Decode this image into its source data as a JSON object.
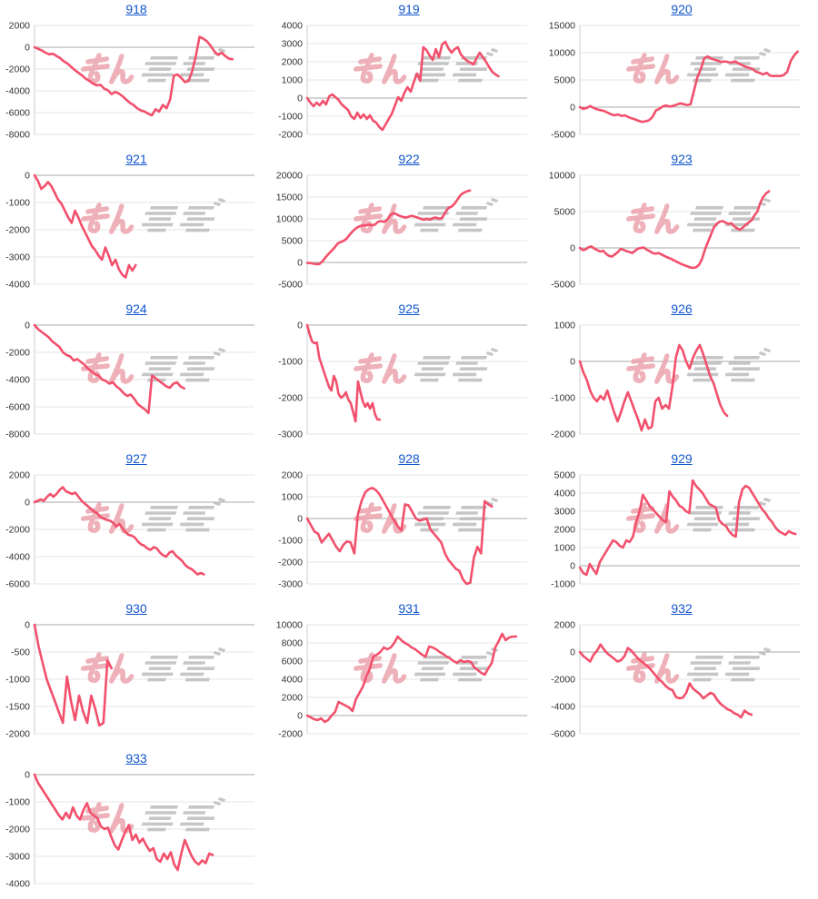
{
  "page": {
    "background": "#ffffff"
  },
  "colors": {
    "line": "#f2506c",
    "title_link": "#1155cc",
    "grid": "#e6e6e6",
    "zero_line": "#aaaaaa",
    "axis_line": "#cccccc",
    "tick_text": "#333333",
    "watermark_pink": "#eca4ad",
    "watermark_gray": "#bdbdbd"
  },
  "watermark": {
    "text": "みんレポ",
    "pink_part": "みん",
    "gray_part": "レポ"
  },
  "chart_data": [
    {
      "type": "line",
      "title": "918",
      "ymax": 2000,
      "ymin": -8000,
      "ticks": [
        2000,
        0,
        -2000,
        -4000,
        -6000,
        -8000
      ],
      "end_frac": 0.9,
      "values": [
        0,
        -150,
        -300,
        -500,
        -650,
        -600,
        -800,
        -1000,
        -1300,
        -1500,
        -1800,
        -2100,
        -2350,
        -2600,
        -2900,
        -3100,
        -3350,
        -3500,
        -3450,
        -3800,
        -3950,
        -4300,
        -4100,
        -4250,
        -4500,
        -4800,
        -5100,
        -5300,
        -5600,
        -5800,
        -5900,
        -6100,
        -6250,
        -5700,
        -5900,
        -5300,
        -5600,
        -4800,
        -2600,
        -2500,
        -2800,
        -3200,
        -3100,
        -2200,
        -800,
        950,
        800,
        550,
        150,
        -350,
        -700,
        -500,
        -800,
        -1050,
        -1100
      ]
    },
    {
      "type": "line",
      "title": "919",
      "ymax": 4000,
      "ymin": -2000,
      "ticks": [
        4000,
        3000,
        2000,
        1000,
        0,
        -1000,
        -2000
      ],
      "end_frac": 0.87,
      "values": [
        0,
        -250,
        -450,
        -250,
        -400,
        -150,
        -350,
        100,
        200,
        50,
        -100,
        -350,
        -500,
        -650,
        -1000,
        -1150,
        -800,
        -1100,
        -900,
        -1150,
        -950,
        -1250,
        -1350,
        -1600,
        -1750,
        -1450,
        -1150,
        -850,
        -400,
        50,
        -150,
        300,
        600,
        350,
        900,
        1350,
        950,
        2800,
        2650,
        2350,
        2100,
        2700,
        2250,
        2950,
        3100,
        2750,
        2500,
        2700,
        2800,
        2400,
        2200,
        2050,
        1950,
        1850,
        2200,
        2500,
        2250,
        2000,
        1700,
        1450,
        1300,
        1200
      ]
    },
    {
      "type": "line",
      "title": "920",
      "ymax": 15000,
      "ymin": -5000,
      "ticks": [
        15000,
        10000,
        5000,
        0,
        -5000
      ],
      "end_frac": 0.99,
      "values": [
        0,
        -300,
        -150,
        200,
        -150,
        -400,
        -550,
        -700,
        -1000,
        -1300,
        -1500,
        -1350,
        -1600,
        -1500,
        -1800,
        -2050,
        -2250,
        -2500,
        -2700,
        -2600,
        -2400,
        -1800,
        -600,
        -300,
        150,
        300,
        100,
        250,
        450,
        700,
        550,
        400,
        500,
        3000,
        5500,
        7000,
        9000,
        9300,
        8900,
        8700,
        8500,
        8300,
        8400,
        8250,
        8200,
        8400,
        8000,
        7700,
        7400,
        7200,
        7000,
        6500,
        6300,
        6000,
        6300,
        5800,
        5700,
        5750,
        5700,
        5900,
        6500,
        8500,
        9500,
        10200
      ]
    },
    {
      "type": "line",
      "title": "921",
      "ymax": 0,
      "ymin": -4000,
      "ticks": [
        0,
        -1000,
        -2000,
        -3000,
        -4000
      ],
      "end_frac": 0.46,
      "values": [
        0,
        -200,
        -500,
        -400,
        -250,
        -400,
        -650,
        -900,
        -1050,
        -1300,
        -1550,
        -1750,
        -1300,
        -1550,
        -1850,
        -2100,
        -2350,
        -2600,
        -2750,
        -2950,
        -3100,
        -2650,
        -2950,
        -3300,
        -3100,
        -3450,
        -3650,
        -3750,
        -3300,
        -3500,
        -3300
      ]
    },
    {
      "type": "line",
      "title": "922",
      "ymax": 20000,
      "ymin": -5000,
      "ticks": [
        20000,
        15000,
        10000,
        5000,
        0,
        -5000
      ],
      "end_frac": 0.74,
      "values": [
        -100,
        -150,
        -300,
        -400,
        -350,
        300,
        1200,
        2000,
        2700,
        3500,
        4400,
        4700,
        5000,
        5600,
        6500,
        7300,
        7900,
        8300,
        8500,
        8450,
        8700,
        8500,
        8650,
        9300,
        9500,
        9300,
        9800,
        10800,
        11300,
        11100,
        10700,
        10500,
        10300,
        10500,
        10700,
        10500,
        10300,
        10000,
        9800,
        10000,
        9800,
        10200,
        10300,
        10000,
        10300,
        11500,
        12500,
        12800,
        13500,
        14500,
        15500,
        16000,
        16300,
        16500
      ]
    },
    {
      "type": "line",
      "title": "923",
      "ymax": 10000,
      "ymin": -5000,
      "ticks": [
        10000,
        5000,
        0,
        -5000
      ],
      "end_frac": 0.86,
      "values": [
        0,
        -300,
        -200,
        100,
        200,
        -100,
        -300,
        -500,
        -400,
        -800,
        -1100,
        -1200,
        -900,
        -600,
        -150,
        -250,
        -450,
        -550,
        -700,
        -400,
        -100,
        0,
        50,
        -250,
        -450,
        -700,
        -800,
        -700,
        -900,
        -1100,
        -1300,
        -1450,
        -1650,
        -1850,
        -2050,
        -2250,
        -2400,
        -2550,
        -2700,
        -2750,
        -2650,
        -2300,
        -1500,
        -200,
        800,
        1800,
        2800,
        3300,
        3600,
        3700,
        3500,
        3300,
        3400,
        3000,
        2700,
        2500,
        2800,
        3200,
        3500,
        3800,
        4500,
        5000,
        6200,
        7000,
        7500,
        7800
      ]
    },
    {
      "type": "line",
      "title": "924",
      "ymax": 0,
      "ymin": -8000,
      "ticks": [
        0,
        -2000,
        -4000,
        -6000,
        -8000
      ],
      "end_frac": 0.68,
      "values": [
        0,
        -300,
        -500,
        -700,
        -900,
        -1200,
        -1400,
        -1600,
        -2000,
        -2200,
        -2300,
        -2600,
        -2500,
        -2700,
        -2900,
        -3200,
        -3400,
        -3600,
        -3700,
        -4000,
        -4100,
        -4300,
        -4200,
        -4500,
        -4700,
        -5000,
        -5200,
        -5100,
        -5400,
        -5800,
        -6000,
        -6200,
        -6450,
        -3700,
        -3900,
        -4100,
        -4300,
        -4500,
        -4600,
        -4300,
        -4200,
        -4500,
        -4650
      ]
    },
    {
      "type": "line",
      "title": "925",
      "ymax": 0,
      "ymin": -3000,
      "ticks": [
        0,
        -1000,
        -2000,
        -3000
      ],
      "end_frac": 0.33,
      "values": [
        0,
        -250,
        -450,
        -500,
        -480,
        -900,
        -1100,
        -1300,
        -1500,
        -1700,
        -1800,
        -1400,
        -1550,
        -1900,
        -2000,
        -1950,
        -1850,
        -2050,
        -2150,
        -2400,
        -2650,
        -1550,
        -1850,
        -2100,
        -2250,
        -2150,
        -2300,
        -2150,
        -2450,
        -2600,
        -2600
      ]
    },
    {
      "type": "line",
      "title": "926",
      "ymax": 1000,
      "ymin": -2000,
      "ticks": [
        1000,
        0,
        -1000,
        -2000
      ],
      "end_frac": 0.67,
      "values": [
        0,
        -300,
        -500,
        -800,
        -1000,
        -1100,
        -950,
        -1050,
        -800,
        -1100,
        -1400,
        -1650,
        -1400,
        -1100,
        -850,
        -1100,
        -1350,
        -1600,
        -1900,
        -1600,
        -1850,
        -1800,
        -1100,
        -1000,
        -1300,
        -1200,
        -1300,
        -700,
        100,
        450,
        300,
        0,
        -200,
        100,
        300,
        450,
        200,
        -100,
        -400,
        -600,
        -900,
        -1200,
        -1400,
        -1500
      ]
    },
    {
      "type": "line",
      "title": "927",
      "ymax": 2000,
      "ymin": -6000,
      "ticks": [
        2000,
        0,
        -2000,
        -4000,
        -6000
      ],
      "end_frac": 0.77,
      "values": [
        0,
        100,
        200,
        100,
        400,
        600,
        400,
        600,
        900,
        1100,
        800,
        700,
        600,
        700,
        400,
        100,
        -100,
        -300,
        -500,
        -700,
        -800,
        -1100,
        -1200,
        -1300,
        -1350,
        -1500,
        -1800,
        -1600,
        -1900,
        -2200,
        -2400,
        -2450,
        -2600,
        -2900,
        -3100,
        -3200,
        -3400,
        -3500,
        -3300,
        -3400,
        -3700,
        -3900,
        -4000,
        -3700,
        -3600,
        -3900,
        -4100,
        -4300,
        -4600,
        -4800,
        -4900,
        -5100,
        -5300,
        -5200,
        -5300
      ]
    },
    {
      "type": "line",
      "title": "928",
      "ymax": 2000,
      "ymin": -3000,
      "ticks": [
        2000,
        1000,
        0,
        -1000,
        -2000,
        -3000
      ],
      "end_frac": 0.84,
      "values": [
        0,
        -300,
        -600,
        -700,
        -1100,
        -900,
        -700,
        -1000,
        -1300,
        -1500,
        -1200,
        -1050,
        -1100,
        -1600,
        200,
        800,
        1200,
        1350,
        1400,
        1300,
        1100,
        800,
        500,
        200,
        -100,
        -350,
        -550,
        650,
        600,
        300,
        0,
        -100,
        -50,
        0,
        -500,
        -700,
        -900,
        -1100,
        -1600,
        -1900,
        -2100,
        -2300,
        -2400,
        -2800,
        -3000,
        -2950,
        -1800,
        -1300,
        -1600,
        800,
        650,
        550
      ]
    },
    {
      "type": "line",
      "title": "929",
      "ymax": 5000,
      "ymin": -1000,
      "ticks": [
        5000,
        4000,
        3000,
        2000,
        1000,
        0,
        -1000
      ],
      "end_frac": 0.98,
      "values": [
        -100,
        -400,
        -500,
        100,
        -200,
        -450,
        200,
        500,
        800,
        1100,
        1400,
        1300,
        1100,
        1000,
        1400,
        1300,
        1600,
        2400,
        3000,
        3900,
        3600,
        3300,
        3100,
        2900,
        2700,
        2500,
        2400,
        4100,
        3800,
        3600,
        3300,
        3200,
        3000,
        2900,
        4700,
        4400,
        4200,
        4000,
        3700,
        3400,
        3300,
        3200,
        2500,
        2300,
        2200,
        1900,
        1700,
        1600,
        3500,
        4200,
        4400,
        4300,
        4000,
        3700,
        3400,
        3100,
        2900,
        2600,
        2400,
        2100,
        1900,
        1800,
        1700,
        1900,
        1800,
        1750
      ]
    },
    {
      "type": "line",
      "title": "930",
      "ymax": 0,
      "ymin": -2000,
      "ticks": [
        0,
        -500,
        -1000,
        -1500,
        -2000
      ],
      "end_frac": 0.35,
      "values": [
        0,
        -400,
        -700,
        -1000,
        -1200,
        -1400,
        -1600,
        -1800,
        -950,
        -1400,
        -1750,
        -1300,
        -1600,
        -1800,
        -1300,
        -1550,
        -1850,
        -1800,
        -650,
        -800
      ]
    },
    {
      "type": "line",
      "title": "931",
      "ymax": 10000,
      "ymin": -2000,
      "ticks": [
        10000,
        8000,
        6000,
        4000,
        2000,
        0,
        -2000
      ],
      "end_frac": 0.95,
      "values": [
        0,
        -200,
        -400,
        -500,
        -300,
        -700,
        -500,
        0,
        400,
        1500,
        1300,
        1100,
        900,
        500,
        1800,
        2500,
        3200,
        4300,
        5200,
        6500,
        6700,
        7000,
        7500,
        7300,
        7500,
        8000,
        8700,
        8300,
        8000,
        7800,
        7500,
        7300,
        7000,
        6700,
        6500,
        7600,
        7500,
        7300,
        7000,
        6800,
        6500,
        6300,
        6000,
        5800,
        6100,
        5900,
        6000,
        5900,
        5300,
        5000,
        4700,
        4500,
        5200,
        5800,
        7500,
        8200,
        9000,
        8300,
        8600,
        8700,
        8700
      ]
    },
    {
      "type": "line",
      "title": "932",
      "ymax": 2000,
      "ymin": -6000,
      "ticks": [
        2000,
        0,
        -2000,
        -4000,
        -6000
      ],
      "end_frac": 0.78,
      "values": [
        0,
        -300,
        -500,
        -700,
        -200,
        100,
        550,
        200,
        -100,
        -300,
        -500,
        -700,
        -600,
        -300,
        300,
        100,
        -200,
        -500,
        -700,
        -900,
        -1100,
        -1400,
        -1700,
        -2000,
        -2200,
        -2500,
        -2700,
        -2800,
        -3300,
        -3400,
        -3350,
        -3000,
        -2300,
        -2700,
        -2900,
        -3100,
        -3400,
        -3200,
        -3000,
        -3100,
        -3500,
        -3800,
        -4000,
        -4200,
        -4300,
        -4500,
        -4600,
        -4800,
        -4300,
        -4500,
        -4600
      ]
    },
    {
      "type": "line",
      "title": "933",
      "ymax": 0,
      "ymin": -4000,
      "ticks": [
        0,
        -1000,
        -2000,
        -3000,
        -4000
      ],
      "end_frac": 0.81,
      "values": [
        0,
        -300,
        -500,
        -700,
        -900,
        -1100,
        -1300,
        -1500,
        -1650,
        -1400,
        -1600,
        -1200,
        -1500,
        -1650,
        -1300,
        -1050,
        -1400,
        -1500,
        -1600,
        -1900,
        -2000,
        -1950,
        -2300,
        -2600,
        -2750,
        -2400,
        -2100,
        -1850,
        -2400,
        -2200,
        -2500,
        -2350,
        -2600,
        -2800,
        -2700,
        -3100,
        -3200,
        -2900,
        -3100,
        -2850,
        -3300,
        -3500,
        -2900,
        -2400,
        -2700,
        -3000,
        -3200,
        -3300,
        -3150,
        -3250,
        -2900,
        -2950
      ]
    }
  ]
}
